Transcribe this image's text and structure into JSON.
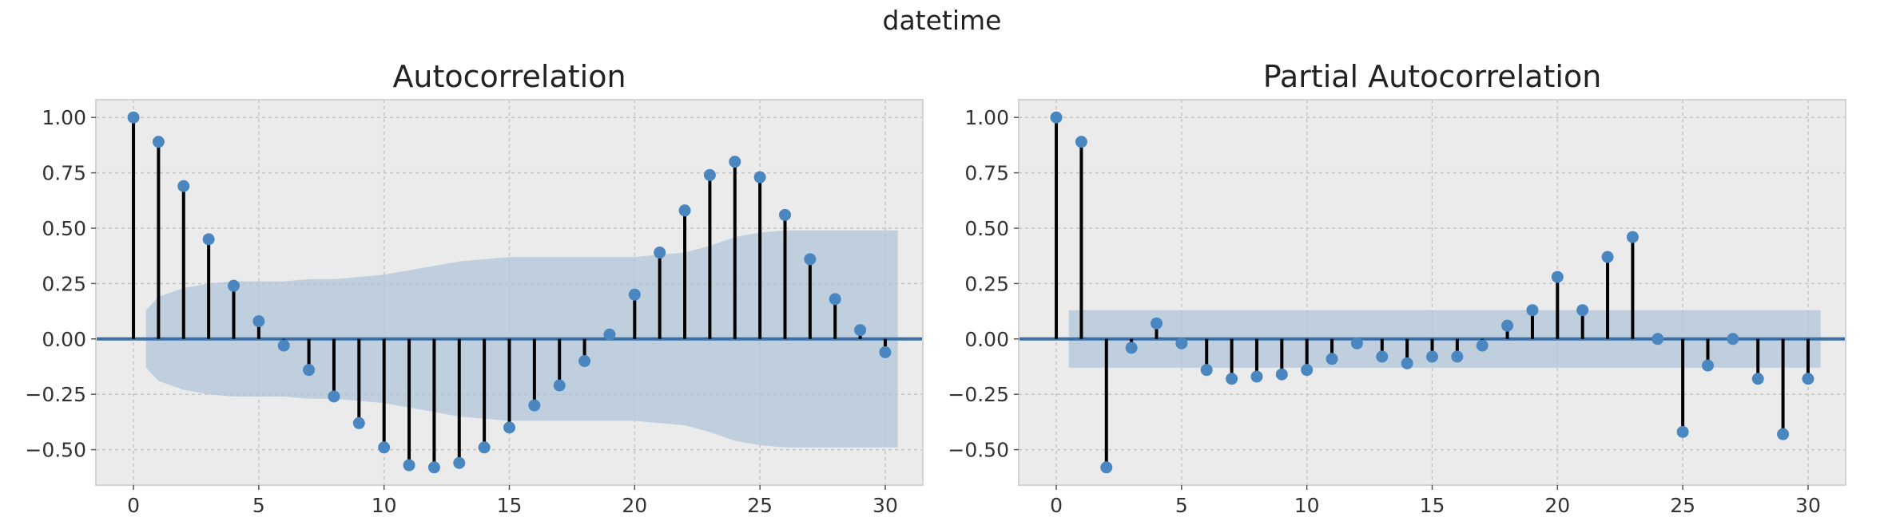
{
  "header": {
    "title": "datetime"
  },
  "colors": {
    "band": "#aec4d8",
    "axhline": "#3a6fa8",
    "marker": "#4a86bf",
    "stem": "#000000"
  },
  "chart_data": [
    {
      "type": "stem",
      "title": "Autocorrelation",
      "xlim": [
        -1.5,
        31.5
      ],
      "ylim": [
        -0.66,
        1.08
      ],
      "xticks": [
        0,
        5,
        10,
        15,
        20,
        25,
        30
      ],
      "xtick_labels": [
        "0",
        "5",
        "10",
        "15",
        "20",
        "25",
        "30"
      ],
      "yticks": [
        1.0,
        0.75,
        0.5,
        0.25,
        0.0,
        -0.25,
        -0.5
      ],
      "ytick_labels": [
        "1.00",
        "0.75",
        "0.50",
        "0.25",
        "0.00",
        "−0.25",
        "−0.50"
      ],
      "grid": true,
      "x": [
        0,
        1,
        2,
        3,
        4,
        5,
        6,
        7,
        8,
        9,
        10,
        11,
        12,
        13,
        14,
        15,
        16,
        17,
        18,
        19,
        20,
        21,
        22,
        23,
        24,
        25,
        26,
        27,
        28,
        29,
        30
      ],
      "values": [
        1.0,
        0.89,
        0.69,
        0.45,
        0.24,
        0.08,
        -0.03,
        -0.14,
        -0.26,
        -0.38,
        -0.49,
        -0.57,
        -0.58,
        -0.56,
        -0.49,
        -0.4,
        -0.3,
        -0.21,
        -0.1,
        0.02,
        0.2,
        0.39,
        0.58,
        0.74,
        0.8,
        0.73,
        0.56,
        0.36,
        0.18,
        0.04,
        -0.06
      ],
      "confidence_band": {
        "x": [
          0.5,
          1,
          2,
          3,
          4,
          5,
          6,
          7,
          8,
          9,
          10,
          11,
          12,
          13,
          14,
          15,
          16,
          17,
          18,
          19,
          20,
          21,
          22,
          23,
          24,
          25,
          26,
          27,
          28,
          29,
          30,
          30.5
        ],
        "upper": [
          0.13,
          0.19,
          0.23,
          0.25,
          0.26,
          0.26,
          0.26,
          0.27,
          0.27,
          0.28,
          0.29,
          0.31,
          0.33,
          0.35,
          0.36,
          0.37,
          0.37,
          0.37,
          0.37,
          0.37,
          0.37,
          0.38,
          0.39,
          0.42,
          0.46,
          0.48,
          0.49,
          0.49,
          0.49,
          0.49,
          0.49,
          0.49
        ]
      }
    },
    {
      "type": "stem",
      "title": "Partial Autocorrelation",
      "xlim": [
        -1.5,
        31.5
      ],
      "ylim": [
        -0.66,
        1.08
      ],
      "xticks": [
        0,
        5,
        10,
        15,
        20,
        25,
        30
      ],
      "xtick_labels": [
        "0",
        "5",
        "10",
        "15",
        "20",
        "25",
        "30"
      ],
      "yticks": [
        1.0,
        0.75,
        0.5,
        0.25,
        0.0,
        -0.25,
        -0.5
      ],
      "ytick_labels": [
        "1.00",
        "0.75",
        "0.50",
        "0.25",
        "0.00",
        "−0.25",
        "−0.50"
      ],
      "grid": true,
      "x": [
        0,
        1,
        2,
        3,
        4,
        5,
        6,
        7,
        8,
        9,
        10,
        11,
        12,
        13,
        14,
        15,
        16,
        17,
        18,
        19,
        20,
        21,
        22,
        23,
        24,
        25,
        26,
        27,
        28,
        29,
        30
      ],
      "values": [
        1.0,
        0.89,
        -0.58,
        -0.04,
        0.07,
        -0.02,
        -0.14,
        -0.18,
        -0.17,
        -0.16,
        -0.14,
        -0.09,
        -0.02,
        -0.08,
        -0.11,
        -0.08,
        -0.08,
        -0.03,
        0.06,
        0.13,
        0.28,
        0.13,
        0.37,
        0.46,
        0.0,
        -0.42,
        -0.12,
        0.0,
        -0.18,
        -0.43,
        -0.18
      ],
      "confidence_band": {
        "x": [
          0.5,
          30.5
        ],
        "upper": [
          0.13,
          0.13
        ]
      }
    }
  ]
}
